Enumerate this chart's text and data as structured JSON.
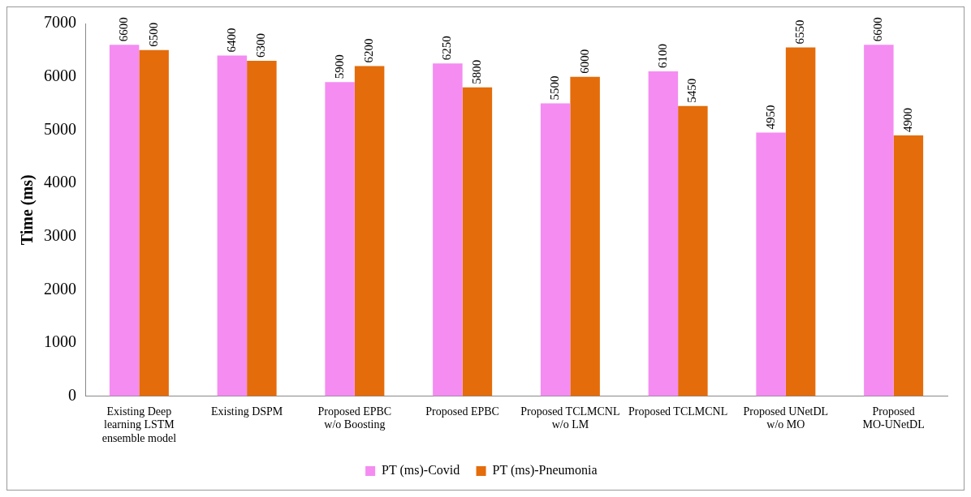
{
  "chart_data": {
    "type": "bar",
    "ylabel": "Time (ms)",
    "categories": [
      "Existing Deep learning LSTM ensemble model",
      "Existing DSPM",
      "Proposed EPBC w/o Boosting",
      "Proposed EPBC",
      "Proposed TCLMCNL w/o LM",
      "Proposed TCLMCNL",
      "Proposed UNetDL w/o MO",
      "Proposed MO-UNetDL"
    ],
    "series": [
      {
        "name": "PT (ms)-Covid",
        "color": "#f48cf2",
        "values": [
          6600,
          6400,
          5900,
          6250,
          5500,
          6100,
          4950,
          6600
        ]
      },
      {
        "name": "PT (ms)-Pneumonia",
        "color": "#e46c0a",
        "values": [
          6500,
          6300,
          6200,
          5800,
          6000,
          5450,
          6550,
          4900
        ]
      }
    ],
    "ylim": [
      0,
      7000
    ],
    "yticks": [
      0,
      1000,
      2000,
      3000,
      4000,
      5000,
      6000,
      7000
    ],
    "grid": false,
    "legend": "bottom",
    "data_labels": true
  }
}
